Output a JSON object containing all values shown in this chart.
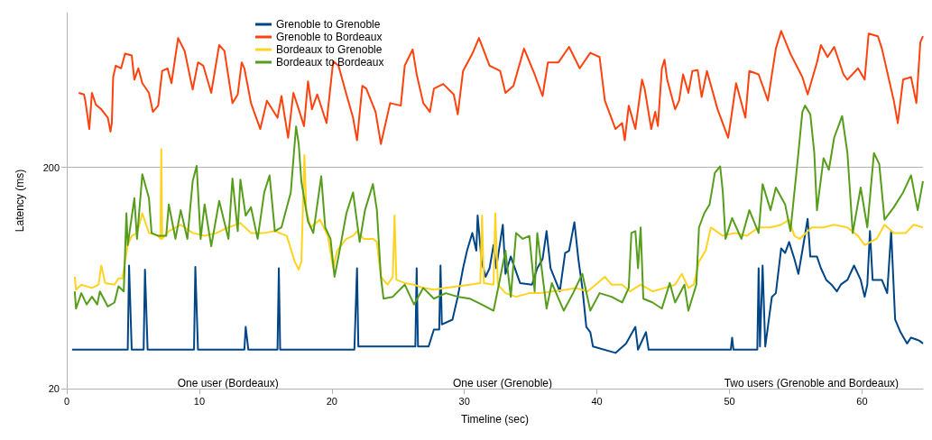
{
  "chart_data": {
    "type": "line",
    "xlabel": "Timeline (sec)",
    "ylabel": "Latency (ms)",
    "log": "y",
    "xlim": [
      0,
      64.6
    ],
    "xticks": [
      0,
      10,
      20,
      30,
      40,
      50,
      60
    ],
    "ylim": [
      20,
      1000
    ],
    "yticks": [
      20,
      200
    ],
    "grid": "y",
    "legend": "top left",
    "annotations": [
      "One user (Bordeaux)",
      "One user (Grenoble)",
      "Two users (Grenoble and Bordeaux)"
    ],
    "series": [
      {
        "name": "Grenoble to Grenoble",
        "color": "#004586",
        "x": [
          0.4,
          4.6,
          4.7,
          4.9,
          5.8,
          5.9,
          6.1,
          9.6,
          9.7,
          9.9,
          13.4,
          13.5,
          13.7,
          15.9,
          16.0,
          16.1,
          21.7,
          21.9,
          22.0,
          26.3,
          26.4,
          26.5,
          27.3,
          27.7,
          28.1,
          28.2,
          28.3,
          29.1,
          29.5,
          29.9,
          30.2,
          30.6,
          30.9,
          31.0,
          31.3,
          31.6,
          31.9,
          32.2,
          32.4,
          32.9,
          33.1,
          33.5,
          34.2,
          35.1,
          35.5,
          35.9,
          36.2,
          36.5,
          37.2,
          37.6,
          37.9,
          38.3,
          38.6,
          38.9,
          39.2,
          39.5,
          39.7,
          41.4,
          42.2,
          42.9,
          43.1,
          43.7,
          43.9,
          50.1,
          50.2,
          50.3,
          52.1,
          52.2,
          52.3,
          52.5,
          52.7,
          53.2,
          53.5,
          53.9,
          54.2,
          54.5,
          54.9,
          55.2,
          55.5,
          55.9,
          56.1,
          56.6,
          56.9,
          57.3,
          57.7,
          58.1,
          58.4,
          58.9,
          59.4,
          59.9,
          60.2,
          60.4,
          60.6,
          60.8,
          61.5,
          61.9,
          62.2,
          62.5,
          62.9,
          63.4,
          63.7,
          64.3,
          64.6
        ],
        "values": [
          30,
          30,
          72,
          30,
          30,
          69,
          30,
          30,
          71,
          30,
          30,
          38,
          30,
          30,
          70,
          30,
          30,
          70,
          31,
          31,
          70,
          31,
          31,
          37,
          37,
          72,
          39,
          41,
          52,
          70,
          84,
          101,
          84,
          121,
          75,
          64,
          70,
          89,
          70,
          110,
          66,
          79,
          60,
          59,
          70,
          77,
          103,
          70,
          55,
          82,
          84,
          113,
          77,
          57,
          38,
          36,
          31,
          29,
          32,
          38,
          30,
          36,
          30,
          30,
          34,
          30,
          30,
          70,
          31,
          72,
          31,
          52,
          54,
          86,
          82,
          92,
          77,
          66,
          84,
          117,
          79,
          79,
          70,
          62,
          59,
          55,
          59,
          62,
          72,
          62,
          52,
          59,
          103,
          62,
          62,
          54,
          103,
          41,
          36,
          32,
          34,
          33,
          32
        ]
      },
      {
        "name": "Grenoble to Bordeaux",
        "color": "#ff420e",
        "x": [
          0.9,
          1.3,
          1.4,
          1.7,
          1.9,
          2.2,
          2.6,
          3.1,
          3.3,
          3.4,
          3.5,
          3.7,
          4.1,
          4.4,
          4.9,
          5.1,
          5.4,
          5.7,
          6.2,
          6.5,
          6.9,
          7.2,
          7.6,
          7.9,
          8.4,
          8.9,
          9.5,
          9.9,
          10.3,
          10.9,
          11.5,
          11.9,
          12.5,
          12.9,
          13.2,
          13.4,
          13.9,
          14.6,
          15.1,
          15.9,
          16.2,
          16.7,
          17.1,
          17.5,
          17.9,
          18.2,
          18.5,
          18.9,
          19.6,
          20.1,
          20.5,
          21.1,
          21.6,
          21.9,
          22.3,
          22.6,
          23.3,
          23.7,
          24.4,
          25.2,
          25.5,
          26.1,
          26.4,
          26.9,
          27.4,
          27.7,
          28.4,
          29.2,
          29.5,
          29.9,
          30.6,
          31.1,
          31.9,
          32.7,
          33.1,
          33.7,
          34.5,
          35.3,
          35.9,
          36.3,
          37.1,
          37.9,
          38.7,
          39.5,
          40.2,
          40.6,
          41.4,
          41.9,
          42.1,
          42.4,
          42.9,
          43.4,
          43.6,
          44.1,
          44.4,
          44.6,
          44.9,
          45.1,
          45.3,
          45.9,
          46.2,
          46.5,
          46.9,
          47.2,
          47.6,
          47.9,
          48.3,
          49.1,
          49.9,
          50.1,
          50.5,
          51.2,
          51.5,
          52.2,
          52.9,
          53.5,
          53.9,
          54.6,
          55.5,
          55.9,
          56.6,
          56.9,
          57.4,
          57.9,
          58.6,
          58.9,
          59.7,
          60.2,
          60.5,
          61.2,
          61.5,
          62.4,
          62.7,
          63.1,
          63.7,
          64.1,
          64.4,
          64.6
        ],
        "values": [
          434,
          427,
          400,
          298,
          434,
          383,
          366,
          335,
          290,
          317,
          511,
          576,
          560,
          652,
          641,
          498,
          560,
          480,
          434,
          356,
          380,
          545,
          560,
          480,
          768,
          670,
          449,
          596,
          576,
          434,
          714,
          670,
          390,
          427,
          596,
          560,
          390,
          298,
          400,
          335,
          420,
          272,
          434,
          366,
          307,
          489,
          366,
          427,
          317,
          602,
          576,
          427,
          335,
          265,
          467,
          453,
          356,
          255,
          390,
          380,
          576,
          682,
          526,
          390,
          356,
          453,
          476,
          427,
          347,
          545,
          652,
          768,
          576,
          545,
          434,
          467,
          688,
          526,
          420,
          596,
          596,
          700,
          560,
          658,
          630,
          400,
          298,
          317,
          265,
          380,
          298,
          498,
          453,
          298,
          356,
          307,
          560,
          613,
          498,
          366,
          400,
          526,
          434,
          545,
          550,
          416,
          545,
          366,
          272,
          326,
          480,
          335,
          545,
          526,
          400,
          688,
          826,
          652,
          511,
          427,
          596,
          714,
          630,
          700,
          526,
          498,
          560,
          498,
          804,
          782,
          688,
          400,
          317,
          498,
          511,
          390,
          734,
          782
        ]
      },
      {
        "name": "Bordeaux to Grenoble",
        "color": "#ffd320",
        "x": [
          0.6,
          0.7,
          1.1,
          1.9,
          2.4,
          2.6,
          2.9,
          3.6,
          3.9,
          4.2,
          4.4,
          4.6,
          4.9,
          5.3,
          5.7,
          6.2,
          6.9,
          7.07,
          7.13,
          7.2,
          7.7,
          8.6,
          9.5,
          10.4,
          11.3,
          12.2,
          13.1,
          13.9,
          14.9,
          15.7,
          16.6,
          17.2,
          17.5,
          17.7,
          17.93,
          18.07,
          18.4,
          19.1,
          19.7,
          20.1,
          20.4,
          21.1,
          21.6,
          21.9,
          22.4,
          23.1,
          23.4,
          23.7,
          24.2,
          24.6,
          24.73,
          24.87,
          25.5,
          26.2,
          26.9,
          27.7,
          28.6,
          29.5,
          30.4,
          31.2,
          31.33,
          31.47,
          32.2,
          32.33,
          32.53,
          33.1,
          33.9,
          34.9,
          35.7,
          36.6,
          37.7,
          38.4,
          39.3,
          39.9,
          40.6,
          41.1,
          41.9,
          42.5,
          43.3,
          44.2,
          45.1,
          45.9,
          46.4,
          46.9,
          47.3,
          47.7,
          48.2,
          48.6,
          49.5,
          50.4,
          51.3,
          52.2,
          53.1,
          53.9,
          54.5,
          54.9,
          55.3,
          56.2,
          57.1,
          57.9,
          58.9,
          59.7,
          60.2,
          61.1,
          61.7,
          62.4,
          63.3,
          63.9,
          64.6
        ],
        "values": [
          64,
          56,
          59,
          57,
          59,
          72,
          60,
          59,
          63,
          63,
          75,
          89,
          98,
          101,
          124,
          101,
          98,
          95,
          242,
          95,
          103,
          110,
          101,
          98,
          101,
          107,
          112,
          101,
          101,
          103,
          98,
          75,
          69,
          75,
          227,
          128,
          107,
          116,
          98,
          70,
          84,
          95,
          98,
          103,
          95,
          95,
          92,
          64,
          59,
          64,
          121,
          62,
          60,
          59,
          57,
          56,
          57,
          58,
          59,
          60,
          121,
          60,
          59,
          124,
          59,
          54,
          52,
          54,
          54,
          55,
          56,
          57,
          55,
          59,
          64,
          59,
          59,
          55,
          59,
          55,
          57,
          59,
          66,
          57,
          59,
          75,
          84,
          107,
          98,
          101,
          98,
          107,
          107,
          110,
          116,
          98,
          95,
          107,
          107,
          110,
          107,
          98,
          89,
          95,
          110,
          101,
          101,
          110,
          107
        ]
      },
      {
        "name": "Bordeaux to Bordeaux",
        "color": "#579d1c",
        "x": [
          0.6,
          0.7,
          1.1,
          1.5,
          1.9,
          2.3,
          2.5,
          3.1,
          3.6,
          3.9,
          4.3,
          4.5,
          4.6,
          5.1,
          5.3,
          5.7,
          6.2,
          6.4,
          6.9,
          7.5,
          7.7,
          8.2,
          8.6,
          9.1,
          9.5,
          9.8,
          10.1,
          10.4,
          10.9,
          11.5,
          12.2,
          12.5,
          12.9,
          13.1,
          13.5,
          13.9,
          14.4,
          14.9,
          15.3,
          15.7,
          16.2,
          16.9,
          17.3,
          17.5,
          17.7,
          18.2,
          18.6,
          19.2,
          19.5,
          19.9,
          20.2,
          20.5,
          21.1,
          21.6,
          22.1,
          22.5,
          23.1,
          23.4,
          23.7,
          23.9,
          24.6,
          25.5,
          26.2,
          26.9,
          27.7,
          28.6,
          29.5,
          30.4,
          31.3,
          32.2,
          32.6,
          33.1,
          33.5,
          33.9,
          34.4,
          34.9,
          35.3,
          35.5,
          36.2,
          36.6,
          37.1,
          37.5,
          38.2,
          38.9,
          39.5,
          40.2,
          41.1,
          41.9,
          42.4,
          42.6,
          42.9,
          43.1,
          43.3,
          43.5,
          44.2,
          44.9,
          45.5,
          45.9,
          46.6,
          46.9,
          47.5,
          47.7,
          48.1,
          48.5,
          48.9,
          49.3,
          49.5,
          49.7,
          50.2,
          50.9,
          51.5,
          52.2,
          52.5,
          53.1,
          53.5,
          54.2,
          54.6,
          55.2,
          55.5,
          55.7,
          56.1,
          56.4,
          56.6,
          57.1,
          57.5,
          57.9,
          58.5,
          58.9,
          59.3,
          59.9,
          60.4,
          60.9,
          61.3,
          61.7,
          62.4,
          63.1,
          63.7,
          64.2,
          64.6
        ],
        "values": [
          55,
          46,
          54,
          48,
          52,
          48,
          55,
          47,
          49,
          58,
          55,
          124,
          89,
          145,
          95,
          186,
          145,
          101,
          98,
          98,
          136,
          95,
          128,
          95,
          173,
          203,
          95,
          136,
          88,
          141,
          95,
          178,
          103,
          176,
          121,
          132,
          95,
          154,
          184,
          103,
          107,
          154,
          306,
          255,
          173,
          114,
          101,
          182,
          107,
          95,
          64,
          79,
          124,
          154,
          92,
          128,
          168,
          128,
          64,
          51,
          52,
          59,
          48,
          57,
          51,
          54,
          52,
          51,
          48,
          45,
          59,
          84,
          52,
          101,
          95,
          98,
          55,
          101,
          46,
          60,
          51,
          45,
          54,
          66,
          45,
          54,
          52,
          49,
          57,
          101,
          103,
          70,
          107,
          51,
          49,
          46,
          60,
          49,
          59,
          45,
          59,
          107,
          124,
          136,
          189,
          202,
          154,
          95,
          118,
          95,
          128,
          101,
          168,
          128,
          162,
          136,
          103,
          232,
          356,
          380,
          347,
          232,
          128,
          220,
          195,
          272,
          341,
          232,
          101,
          162,
          107,
          232,
          207,
          116,
          132,
          154,
          184,
          128,
          173
        ]
      }
    ]
  }
}
